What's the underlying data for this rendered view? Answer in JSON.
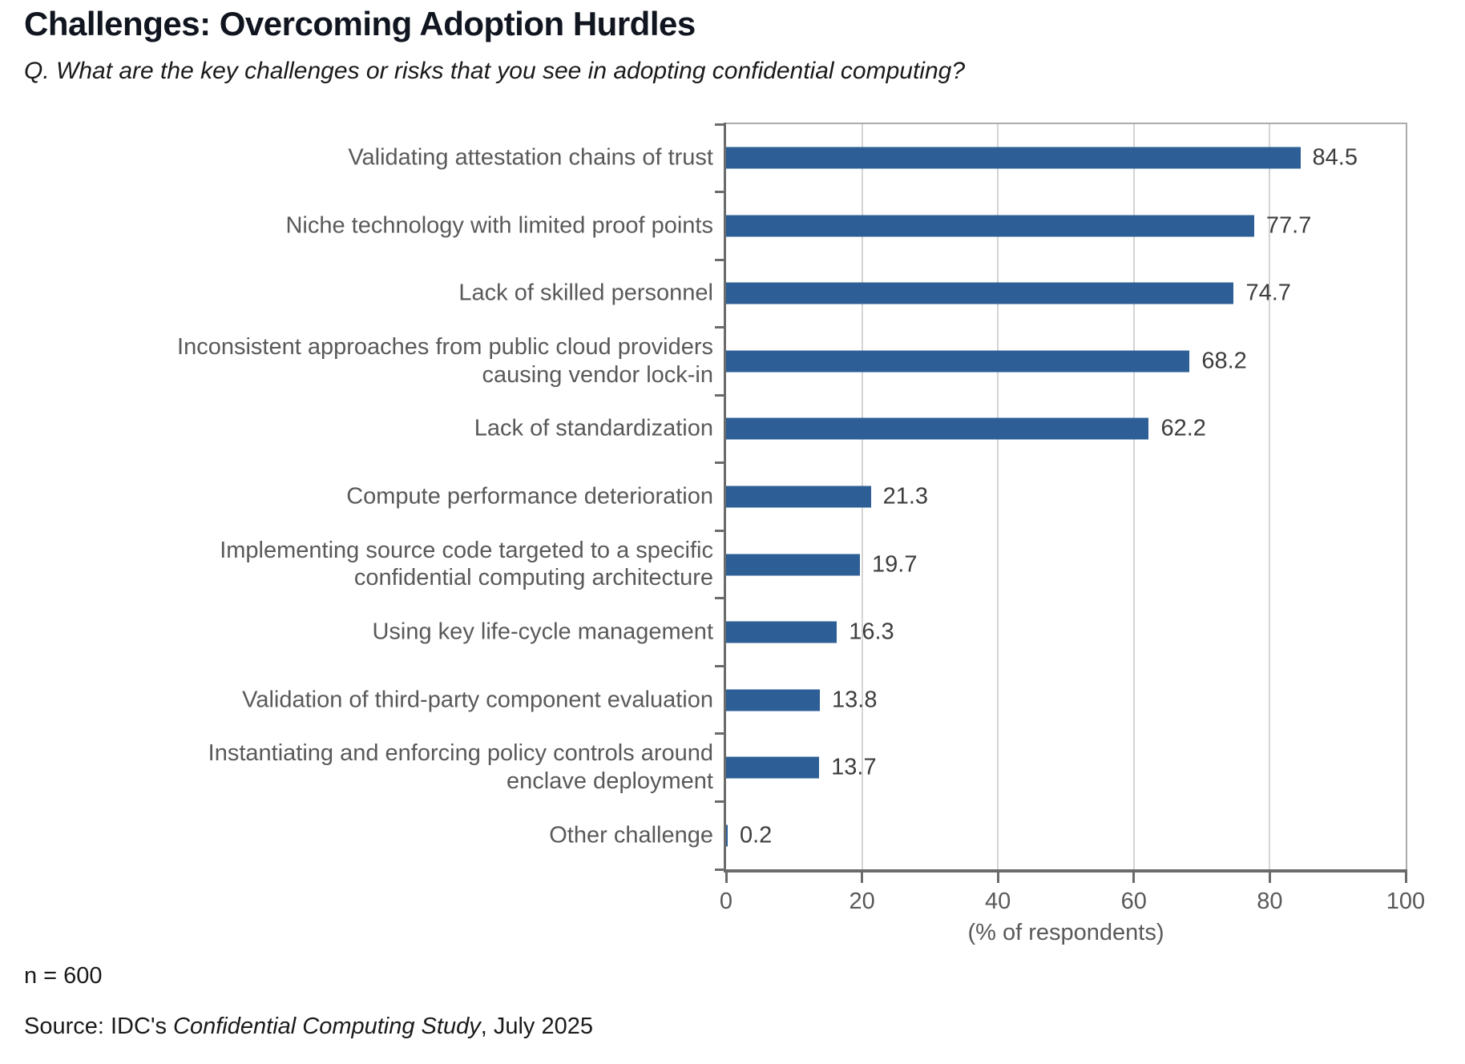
{
  "header": {
    "title": "Challenges: Overcoming Adoption Hurdles",
    "subtitle": "Q. What are the key challenges or risks that you see in adopting confidential computing?"
  },
  "chart_data": {
    "type": "bar",
    "orientation": "horizontal",
    "title": "Challenges: Overcoming Adoption Hurdles",
    "categories": [
      "Validating attestation chains of trust",
      "Niche technology with limited proof points",
      "Lack of skilled personnel",
      "Inconsistent approaches from public cloud providers\ncausing vendor lock-in",
      "Lack of standardization",
      "Compute performance deterioration",
      "Implementing source code targeted to a specific\nconfidential computing architecture",
      "Using key life-cycle management",
      "Validation of third-party component evaluation",
      "Instantiating and enforcing policy controls around\nenclave deployment",
      "Other challenge"
    ],
    "values": [
      84.5,
      77.7,
      74.7,
      68.2,
      62.2,
      21.3,
      19.7,
      16.3,
      13.8,
      13.7,
      0.2
    ],
    "value_labels": [
      "84.5",
      "77.7",
      "74.7",
      "68.2",
      "62.2",
      "21.3",
      "19.7",
      "16.3",
      "13.8",
      "13.7",
      "0.2"
    ],
    "xlabel": "(% of respondents)",
    "xlim": [
      0,
      100
    ],
    "xticks": [
      0,
      20,
      40,
      60,
      80,
      100
    ],
    "grid": "vertical-light-gray",
    "legend": "none",
    "bar_color": "#2d5f96",
    "gridline_color": "#d4d4d4",
    "axis_color": "#6b6b6b",
    "border_color": "#ababab",
    "category_label_color": "#595959",
    "value_label_color": "#3d3d3d"
  },
  "footer": {
    "sample_size": "n = 600",
    "source_prefix": "Source: IDC's ",
    "source_italic": "Confidential Computing Study",
    "source_suffix": ", July 2025"
  }
}
